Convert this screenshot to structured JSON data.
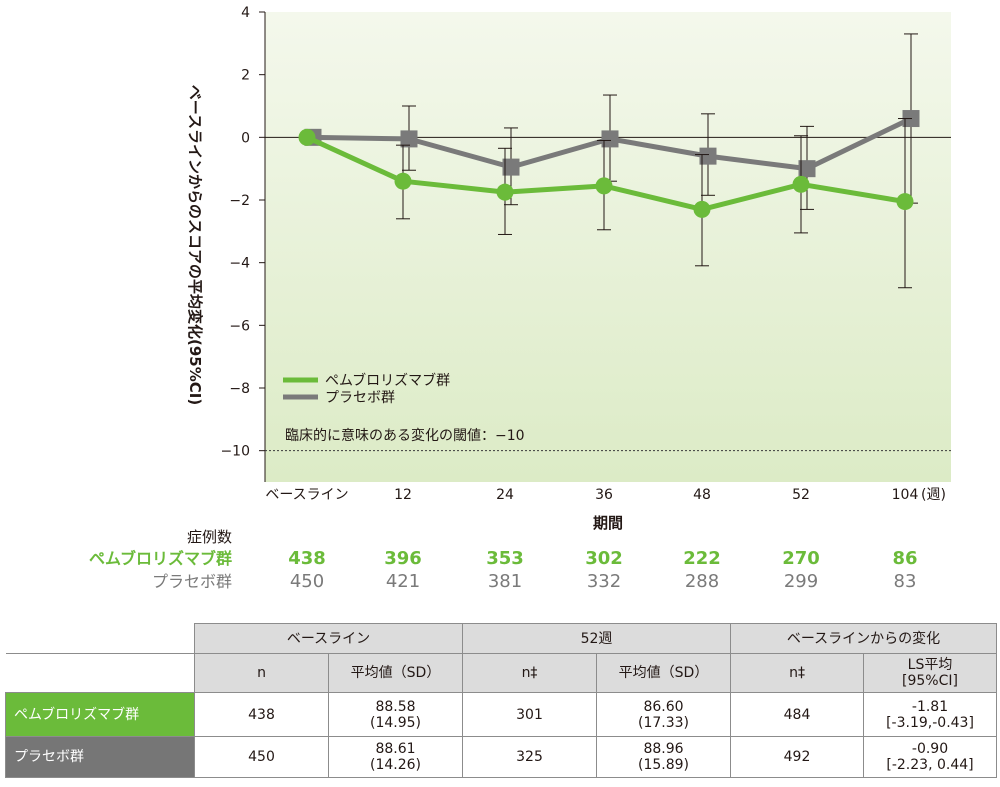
{
  "chart_data": {
    "type": "line",
    "ylabel": "ベースラインからのスコアの平均変化(95%CI)",
    "xlabel": "期間",
    "x_unit": "(週)",
    "categories": [
      "ベースライン",
      "12",
      "24",
      "36",
      "48",
      "52",
      "104"
    ],
    "yticks": [
      4,
      2,
      0,
      -2,
      -4,
      -6,
      -8,
      -10
    ],
    "ytick_labels": [
      "4",
      "2",
      "0",
      "−2",
      "−4",
      "−6",
      "−8",
      "−10"
    ],
    "ylim": [
      -11,
      4
    ],
    "threshold": {
      "value": -10,
      "label": "臨床的に意味のある変化の閾値：−10"
    },
    "series": [
      {
        "name": "ペムブロリズマブ群",
        "color": "#6bbb3a",
        "marker": "circle",
        "values": [
          0,
          -1.4,
          -1.75,
          -1.55,
          -2.3,
          -1.5,
          -2.05
        ],
        "ci_low": [
          0,
          -2.6,
          -3.1,
          -2.95,
          -4.1,
          -3.05,
          -4.8
        ],
        "ci_high": [
          0,
          -0.25,
          -0.35,
          -0.1,
          -0.55,
          0.05,
          0.6
        ]
      },
      {
        "name": "プラセボ群",
        "color": "#7a7a7a",
        "marker": "square",
        "values": [
          0,
          -0.05,
          -0.95,
          -0.05,
          -0.6,
          -1.0,
          0.6
        ],
        "ci_low": [
          0,
          -1.05,
          -2.15,
          -1.4,
          -1.85,
          -2.3,
          -2.1
        ],
        "ci_high": [
          0,
          1.0,
          0.3,
          1.35,
          0.75,
          0.35,
          3.3
        ]
      }
    ]
  },
  "counts": {
    "title": "症例数",
    "pembro": {
      "label": "ペムブロリズマブ群",
      "values": [
        "438",
        "396",
        "353",
        "302",
        "222",
        "270",
        "86"
      ]
    },
    "placebo": {
      "label": "プラセボ群",
      "values": [
        "450",
        "421",
        "381",
        "332",
        "288",
        "299",
        "83"
      ]
    }
  },
  "table": {
    "group_headers": [
      "ベースライン",
      "52週",
      "ベースラインからの変化"
    ],
    "sub_headers": [
      "n",
      "平均値（SD）",
      "n‡",
      "平均値（SD）",
      "n‡",
      "LS平均",
      "[95%CI]"
    ],
    "rows": [
      {
        "label": "ペムブロリズマブ群",
        "n1": "438",
        "mean1": "88.58",
        "sd1": "(14.95)",
        "n2": "301",
        "mean2": "86.60",
        "sd2": "(17.33)",
        "n3": "484",
        "ls": "-1.81",
        "ci": "[-3.19,-0.43]"
      },
      {
        "label": "プラセボ群",
        "n1": "450",
        "mean1": "88.61",
        "sd1": "(14.26)",
        "n2": "325",
        "mean2": "88.96",
        "sd2": "(15.89)",
        "n3": "492",
        "ls": "-0.90",
        "ci": "[-2.23, 0.44]"
      }
    ]
  },
  "colors": {
    "pembro": "#6bbb3a",
    "placebo": "#7a7a7a",
    "plot_bg_top": "#f4f8ec",
    "plot_bg_bottom": "#dcebc6"
  }
}
